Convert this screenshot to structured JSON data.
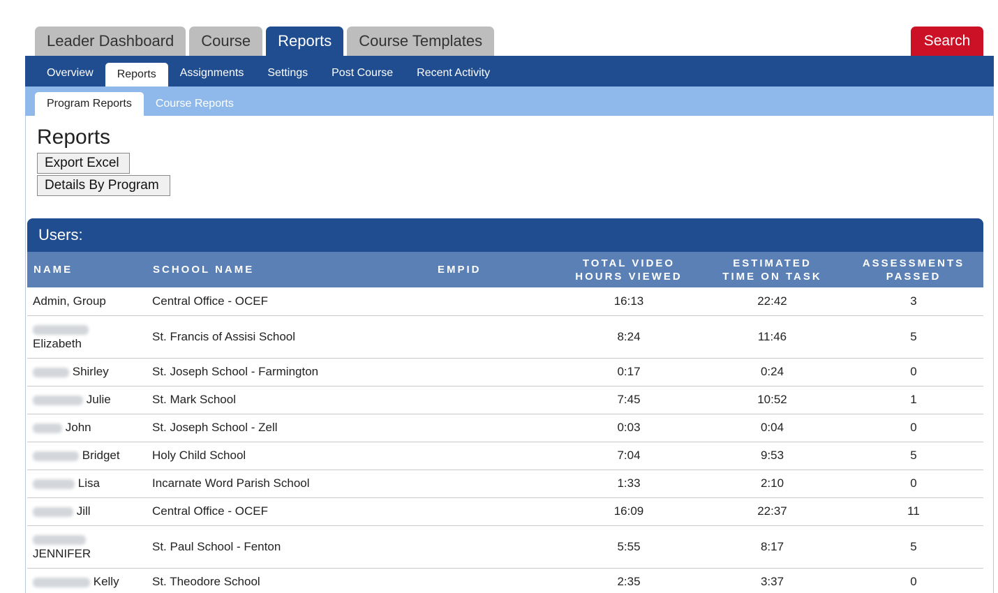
{
  "top_tabs": [
    {
      "label": "Leader Dashboard"
    },
    {
      "label": "Course"
    },
    {
      "label": "Reports",
      "active": true
    },
    {
      "label": "Course Templates"
    }
  ],
  "search_label": "Search",
  "sub_tabs": [
    {
      "label": "Overview"
    },
    {
      "label": "Reports",
      "active": true
    },
    {
      "label": "Assignments"
    },
    {
      "label": "Settings"
    },
    {
      "label": "Post Course"
    },
    {
      "label": "Recent Activity"
    }
  ],
  "third_tabs": [
    {
      "label": "Program Reports",
      "active": true
    },
    {
      "label": "Course Reports"
    }
  ],
  "page_title": "Reports",
  "buttons": {
    "export_excel": "Export Excel",
    "details_by_program": "Details By Program"
  },
  "users": {
    "header": "Users:",
    "columns": {
      "name": "NAME",
      "school": "SCHOOL NAME",
      "empid": "EMPID",
      "video_1": "TOTAL VIDEO",
      "video_2": "HOURS VIEWED",
      "time_1": "ESTIMATED",
      "time_2": "TIME ON TASK",
      "assess_1": "ASSESSMENTS",
      "assess_2": "PASSED"
    },
    "rows": [
      {
        "name": "Admin, Group",
        "school": "Central Office - OCEF",
        "empid": "",
        "video": "16:13",
        "time": "22:42",
        "assessments": "3"
      },
      {
        "name": "Elizabeth",
        "school": "St. Francis of Assisi School",
        "empid": "",
        "video": "8:24",
        "time": "11:46",
        "assessments": "5"
      },
      {
        "name": "Shirley",
        "school": "St. Joseph School - Farmington",
        "empid": "",
        "video": "0:17",
        "time": "0:24",
        "assessments": "0"
      },
      {
        "name": "Julie",
        "school": "St. Mark School",
        "empid": "",
        "video": "7:45",
        "time": "10:52",
        "assessments": "1"
      },
      {
        "name": "John",
        "school": "St. Joseph School - Zell",
        "empid": "",
        "video": "0:03",
        "time": "0:04",
        "assessments": "0"
      },
      {
        "name": "Bridget",
        "school": "Holy Child School",
        "empid": "",
        "video": "7:04",
        "time": "9:53",
        "assessments": "5"
      },
      {
        "name": "Lisa",
        "school": "Incarnate Word Parish School",
        "empid": "",
        "video": "1:33",
        "time": "2:10",
        "assessments": "0"
      },
      {
        "name": "Jill",
        "school": "Central Office - OCEF",
        "empid": "",
        "video": "16:09",
        "time": "22:37",
        "assessments": "11"
      },
      {
        "name": "JENNIFER",
        "school": "St. Paul School - Fenton",
        "empid": "",
        "video": "5:55",
        "time": "8:17",
        "assessments": "5"
      },
      {
        "name": "Kelly",
        "school": "St. Theodore School",
        "empid": "",
        "video": "2:35",
        "time": "3:37",
        "assessments": "0"
      }
    ]
  },
  "colors": {
    "primary_blue": "#1f4d8f",
    "header_blue": "#5a80b5",
    "light_blue": "#8fb9ea",
    "search_red": "#cc1126"
  }
}
